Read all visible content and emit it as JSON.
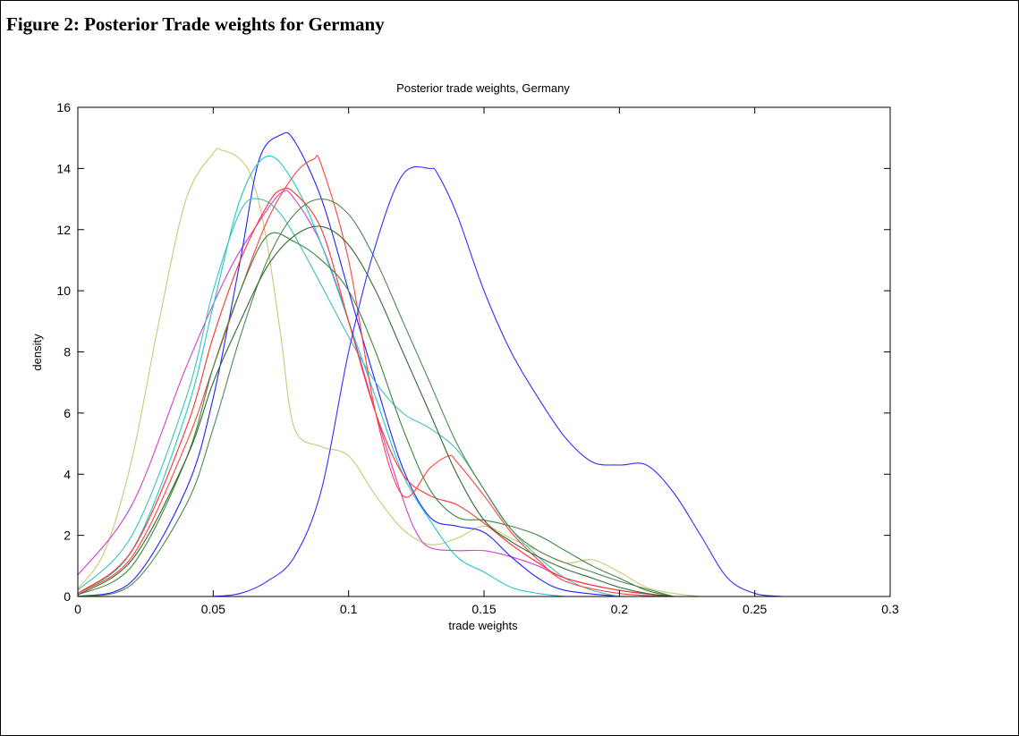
{
  "figure_caption": "Figure 2: Posterior Trade weights for Germany",
  "chart_data": {
    "type": "line",
    "title": "Posterior trade weights, Germany",
    "xlabel": "trade weights",
    "ylabel": "density",
    "xlim": [
      0,
      0.3
    ],
    "ylim": [
      0,
      16
    ],
    "xticks": [
      0,
      0.05,
      0.1,
      0.15,
      0.2,
      0.25,
      0.3
    ],
    "xtick_labels": [
      "0",
      "0.05",
      "0.1",
      "0.15",
      "0.2",
      "0.25",
      "0.3"
    ],
    "yticks": [
      0,
      2,
      4,
      6,
      8,
      10,
      12,
      14,
      16
    ],
    "ytick_labels": [
      "0",
      "2",
      "4",
      "6",
      "8",
      "10",
      "12",
      "14",
      "16"
    ],
    "grid": false,
    "series": [
      {
        "color": "#c8c878",
        "x": [
          0,
          0.01,
          0.02,
          0.03,
          0.04,
          0.05,
          0.053,
          0.06,
          0.065,
          0.07,
          0.075,
          0.08,
          0.09,
          0.1,
          0.11,
          0.12,
          0.13,
          0.14,
          0.15,
          0.16,
          0.17,
          0.18,
          0.19,
          0.2,
          0.21,
          0.22,
          0.23
        ],
        "y": [
          0.25,
          1.5,
          4.5,
          9,
          13,
          14.5,
          14.6,
          14.3,
          13.5,
          11.5,
          8.5,
          5.5,
          4.9,
          4.6,
          3.3,
          2.2,
          1.7,
          1.9,
          2.3,
          1.9,
          1.5,
          1.1,
          1.2,
          0.8,
          0.3,
          0.1,
          0
        ]
      },
      {
        "color": "#d040d0",
        "x": [
          0,
          0.02,
          0.04,
          0.055,
          0.065,
          0.075,
          0.08,
          0.09,
          0.1,
          0.11,
          0.12,
          0.125,
          0.13,
          0.14,
          0.15,
          0.16,
          0.17,
          0.18,
          0.2,
          0.22
        ],
        "y": [
          0.7,
          3,
          7.5,
          10.5,
          12,
          13.2,
          13,
          11.5,
          9,
          6,
          3.2,
          2.1,
          1.6,
          1.5,
          1.5,
          1.3,
          1,
          0.6,
          0.2,
          0
        ]
      },
      {
        "color": "#2020ff",
        "x": [
          0,
          0.02,
          0.04,
          0.05,
          0.06,
          0.067,
          0.075,
          0.08,
          0.09,
          0.1,
          0.11,
          0.12,
          0.13,
          0.14,
          0.15,
          0.16,
          0.17,
          0.18,
          0.2
        ],
        "y": [
          0,
          0.5,
          3.5,
          6.5,
          11,
          14.3,
          15.1,
          14.9,
          13,
          10,
          7,
          4.2,
          2.6,
          2.3,
          2.1,
          1.3,
          0.6,
          0.2,
          0
        ]
      },
      {
        "color": "#20c8c8",
        "x": [
          0,
          0.02,
          0.04,
          0.05,
          0.06,
          0.07,
          0.08,
          0.09,
          0.1,
          0.11,
          0.12,
          0.13,
          0.14,
          0.15,
          0.16,
          0.17,
          0.18
        ],
        "y": [
          0.1,
          1.5,
          6,
          9.5,
          13,
          14.4,
          13.5,
          11.5,
          9,
          6.5,
          4,
          2.5,
          1.3,
          0.8,
          0.3,
          0.1,
          0
        ]
      },
      {
        "color": "#40c0b8",
        "x": [
          0,
          0.02,
          0.04,
          0.05,
          0.06,
          0.067,
          0.075,
          0.085,
          0.1,
          0.11,
          0.12,
          0.13,
          0.14,
          0.15,
          0.16,
          0.17,
          0.18,
          0.19,
          0.2
        ],
        "y": [
          0.2,
          2,
          6.5,
          10,
          12.6,
          13,
          12.5,
          11,
          8.5,
          7,
          6,
          5.5,
          4.8,
          3.5,
          2.2,
          1.3,
          0.6,
          0.2,
          0
        ]
      },
      {
        "color": "#ff3030",
        "x": [
          0,
          0.02,
          0.04,
          0.05,
          0.06,
          0.07,
          0.075,
          0.08,
          0.09,
          0.1,
          0.11,
          0.12,
          0.13,
          0.14,
          0.15,
          0.16,
          0.17,
          0.18,
          0.2,
          0.22
        ],
        "y": [
          0.1,
          1.5,
          5.5,
          8.5,
          11,
          12.8,
          13.3,
          13.2,
          12,
          9,
          6,
          4,
          3.3,
          3,
          2.4,
          1.7,
          1.1,
          0.6,
          0.2,
          0
        ]
      },
      {
        "color": "#ff4040",
        "x": [
          0,
          0.02,
          0.04,
          0.05,
          0.06,
          0.07,
          0.08,
          0.087,
          0.09,
          0.1,
          0.11,
          0.12,
          0.13,
          0.137,
          0.14,
          0.15,
          0.16,
          0.17,
          0.18,
          0.2,
          0.22
        ],
        "y": [
          0.1,
          1.3,
          5,
          7.5,
          10,
          12.3,
          13.8,
          14.3,
          14.1,
          11,
          6,
          3.3,
          4.2,
          4.6,
          4.4,
          3.3,
          2.1,
          1.2,
          0.5,
          0.1,
          0
        ]
      },
      {
        "color": "#3a8a3a",
        "x": [
          0,
          0.02,
          0.04,
          0.05,
          0.06,
          0.07,
          0.08,
          0.09,
          0.1,
          0.11,
          0.12,
          0.13,
          0.14,
          0.15,
          0.16,
          0.17,
          0.18,
          0.19,
          0.2,
          0.21,
          0.22
        ],
        "y": [
          0.05,
          1,
          4.5,
          7.5,
          10,
          11.8,
          11.6,
          11,
          10,
          8,
          5.5,
          3.5,
          2.6,
          2.5,
          2.3,
          2,
          1.5,
          1,
          0.6,
          0.2,
          0
        ]
      },
      {
        "color": "#508850",
        "x": [
          0,
          0.02,
          0.04,
          0.05,
          0.06,
          0.07,
          0.08,
          0.09,
          0.1,
          0.11,
          0.12,
          0.13,
          0.14,
          0.15,
          0.16,
          0.17,
          0.18,
          0.19,
          0.2,
          0.22
        ],
        "y": [
          0,
          0.4,
          3,
          5.5,
          8.5,
          11,
          12.5,
          13,
          12.5,
          11,
          9,
          7,
          5,
          3.5,
          2.2,
          1.5,
          1.1,
          0.8,
          0.5,
          0
        ]
      },
      {
        "color": "#306830",
        "x": [
          0,
          0.02,
          0.04,
          0.05,
          0.06,
          0.07,
          0.08,
          0.09,
          0.1,
          0.11,
          0.12,
          0.13,
          0.14,
          0.15,
          0.16,
          0.17,
          0.18,
          0.19,
          0.2,
          0.21,
          0.22
        ],
        "y": [
          0.05,
          1.2,
          4.5,
          7,
          9,
          10.8,
          11.8,
          12.1,
          11.5,
          10,
          8,
          6,
          4,
          2.5,
          1.8,
          1.3,
          0.9,
          0.6,
          0.3,
          0.1,
          0
        ]
      },
      {
        "color": "#3030ff",
        "x": [
          0.05,
          0.06,
          0.07,
          0.08,
          0.09,
          0.1,
          0.11,
          0.12,
          0.13,
          0.133,
          0.14,
          0.15,
          0.16,
          0.17,
          0.18,
          0.19,
          0.2,
          0.21,
          0.22,
          0.23,
          0.24,
          0.25,
          0.26
        ],
        "y": [
          0,
          0.1,
          0.5,
          1.3,
          3.5,
          8,
          11.5,
          13.8,
          14,
          13.8,
          12.5,
          10,
          8,
          6.5,
          5.2,
          4.4,
          4.3,
          4.3,
          3.4,
          2,
          0.6,
          0.1,
          0
        ]
      }
    ]
  }
}
